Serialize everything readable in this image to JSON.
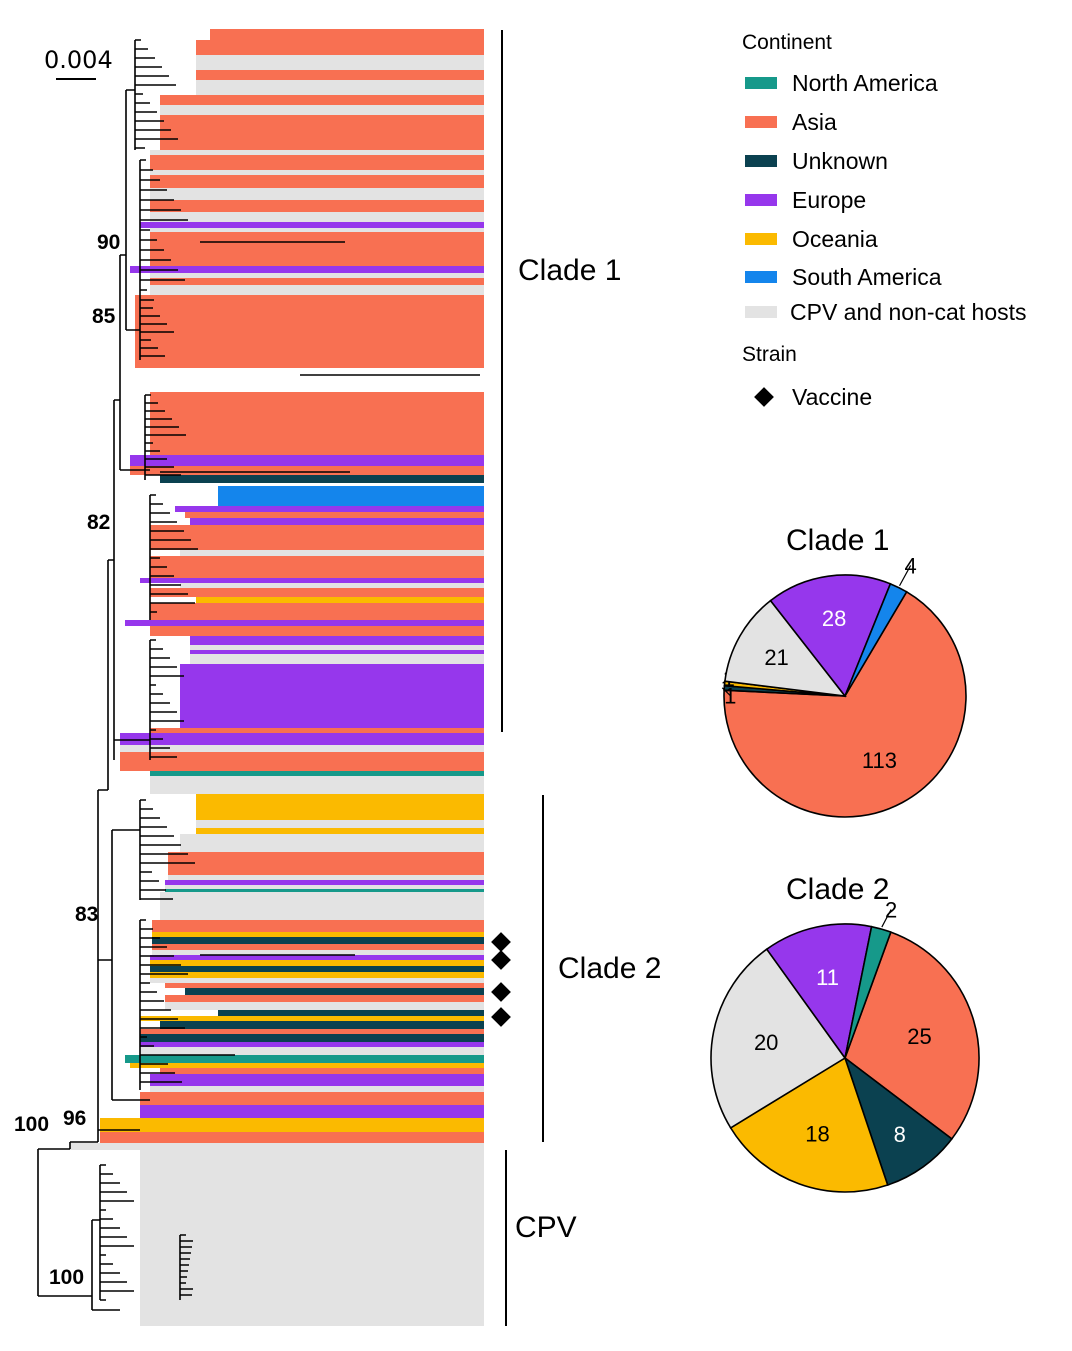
{
  "scale_bar": {
    "label": "0.004"
  },
  "bootstrap_values": [
    "90",
    "85",
    "82",
    "83",
    "96",
    "100",
    "100"
  ],
  "clade_labels": [
    "Clade 1",
    "Clade 2",
    "CPV"
  ],
  "legend": {
    "continent_title": "Continent",
    "continents": [
      {
        "name": "North America",
        "color": "#16998a"
      },
      {
        "name": "Asia",
        "color": "#f87052"
      },
      {
        "name": "Unknown",
        "color": "#0b4150"
      },
      {
        "name": "Europe",
        "color": "#9637ec"
      },
      {
        "name": "Oceania",
        "color": "#fbba00"
      },
      {
        "name": "South America",
        "color": "#1485ec"
      },
      {
        "name": "CPV and non-cat hosts",
        "color": "#e3e3e3"
      }
    ],
    "strain_title": "Strain",
    "strains": [
      {
        "name": "Vaccine",
        "icon": "diamond-icon"
      }
    ]
  },
  "colors": {
    "north_america": "#16998a",
    "asia": "#f87052",
    "unknown": "#0b4150",
    "europe": "#9637ec",
    "oceania": "#fbba00",
    "south_america": "#1485ec",
    "cpv": "#e3e3e3"
  },
  "chart_data": [
    {
      "type": "pie",
      "title": "Clade 1",
      "slices": [
        {
          "label": "113",
          "category": "Asia",
          "value": 113
        },
        {
          "label": "1",
          "category": "Unknown",
          "value": 1
        },
        {
          "label": "1",
          "category": "Oceania",
          "value": 1
        },
        {
          "label": "21",
          "category": "CPV and non-cat hosts",
          "value": 21
        },
        {
          "label": "28",
          "category": "Europe",
          "value": 28
        },
        {
          "label": "4",
          "category": "South America",
          "value": 4
        }
      ]
    },
    {
      "type": "pie",
      "title": "Clade 2",
      "slices": [
        {
          "label": "25",
          "category": "Asia",
          "value": 25
        },
        {
          "label": "8",
          "category": "Unknown",
          "value": 8
        },
        {
          "label": "18",
          "category": "Oceania",
          "value": 18
        },
        {
          "label": "20",
          "category": "CPV and non-cat hosts",
          "value": 20
        },
        {
          "label": "11",
          "category": "Europe",
          "value": 11
        },
        {
          "label": "2",
          "category": "North America",
          "value": 2
        }
      ]
    }
  ]
}
